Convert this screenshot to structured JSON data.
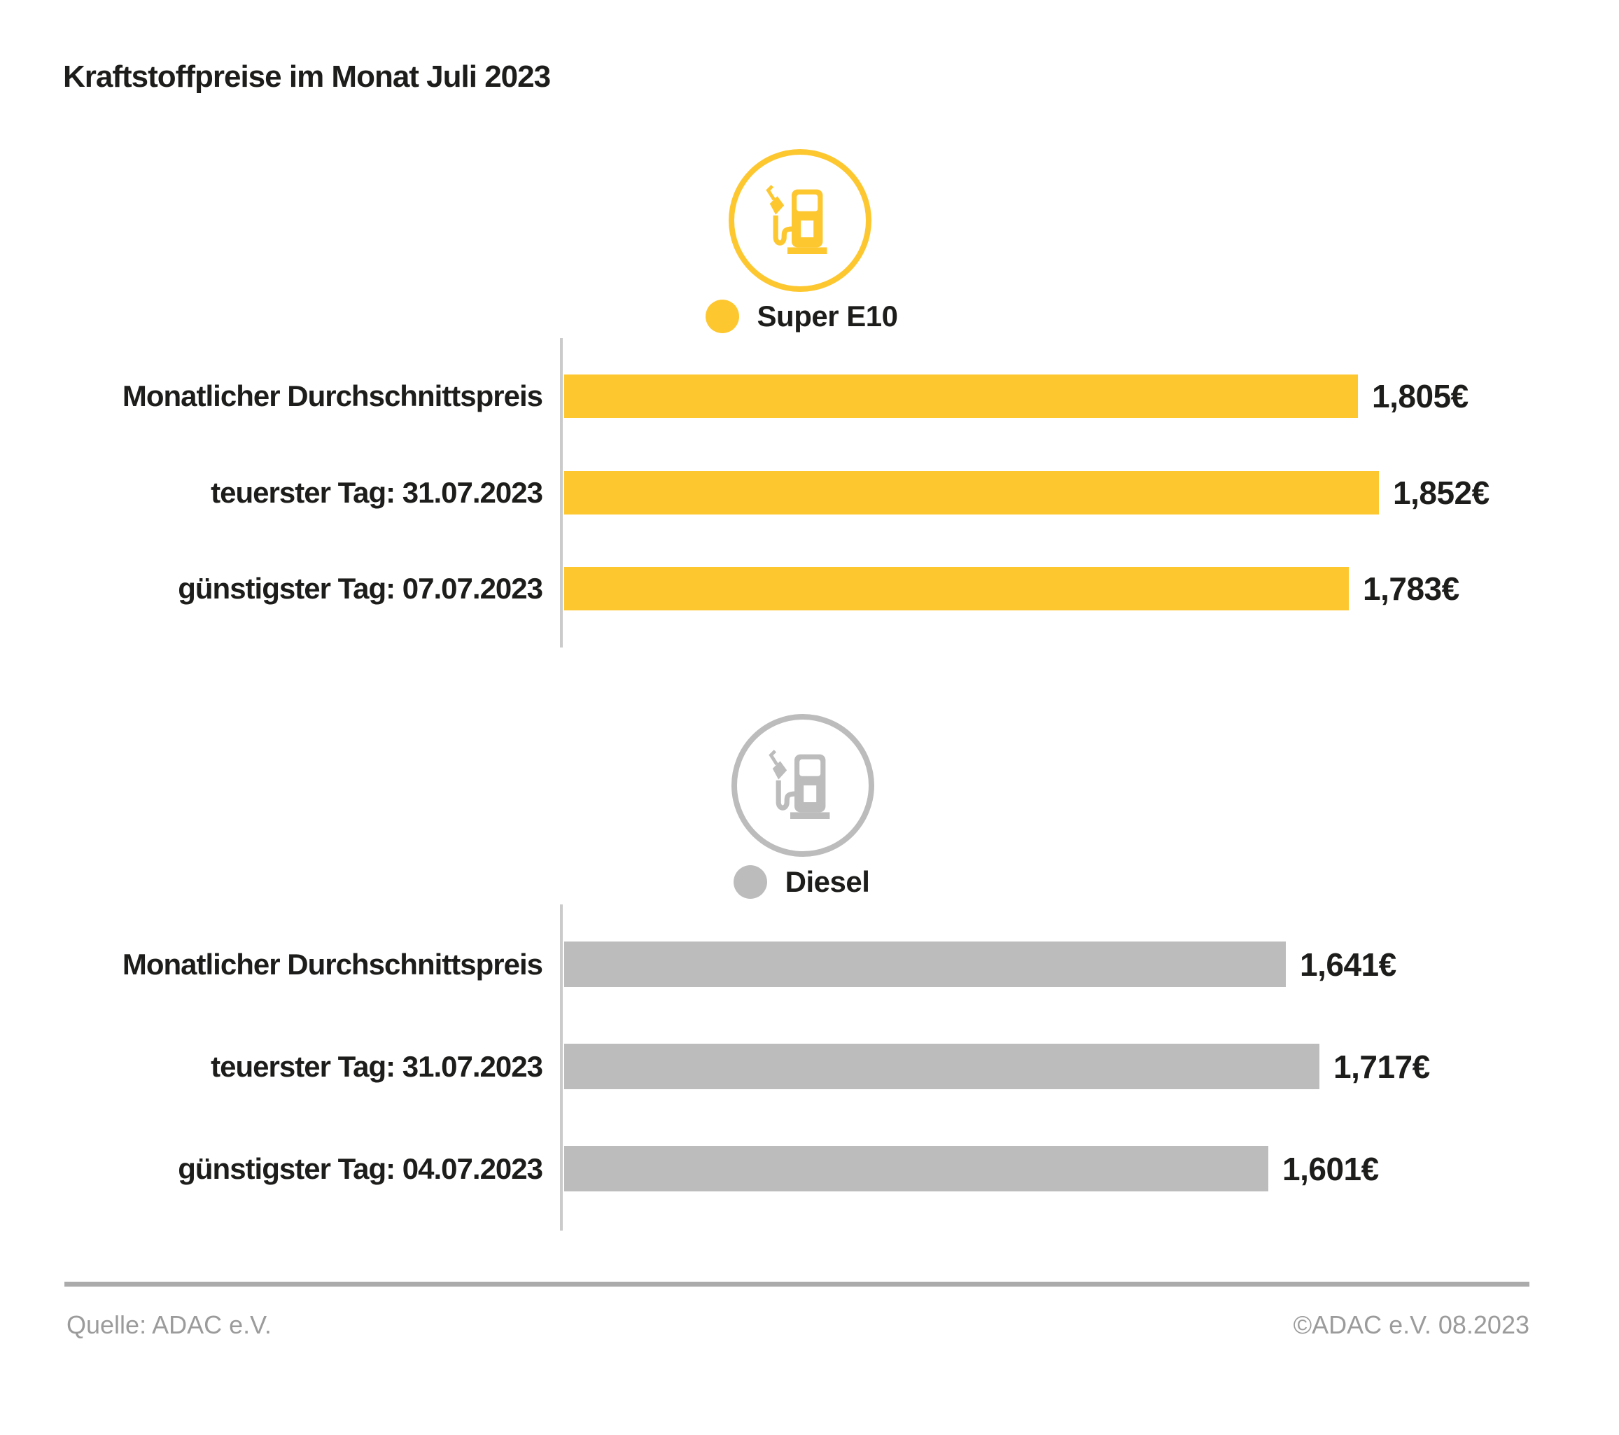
{
  "title": "Kraftstoffpreise im Monat Juli 2023",
  "sections": [
    {
      "id": "super-e10",
      "legend_label": "Super E10",
      "icon": "fuel-pump-icon",
      "color": "#FDC72F"
    },
    {
      "id": "diesel",
      "legend_label": "Diesel",
      "icon": "fuel-pump-icon",
      "color": "#BCBCBC"
    }
  ],
  "chart_data": [
    {
      "type": "bar",
      "orientation": "horizontal",
      "group": "Super E10",
      "categories": [
        "Monatlicher Durchschnittspreis",
        "teuerster Tag: 31.07.2023",
        "günstigster Tag: 07.07.2023"
      ],
      "values": [
        1.805,
        1.852,
        1.783
      ],
      "value_labels": [
        "1,805€",
        "1,852€",
        "1,783€"
      ],
      "bar_color": "#FDC72F",
      "xlim": [
        0,
        1.852
      ],
      "grid": false,
      "value_label_position": "end-of-bar"
    },
    {
      "type": "bar",
      "orientation": "horizontal",
      "group": "Diesel",
      "categories": [
        "Monatlicher Durchschnittspreis",
        "teuerster Tag: 31.07.2023",
        "günstigster Tag: 04.07.2023"
      ],
      "values": [
        1.641,
        1.717,
        1.601
      ],
      "value_labels": [
        "1,641€",
        "1,717€",
        "1,601€"
      ],
      "bar_color": "#BCBCBC",
      "xlim": [
        0,
        1.852
      ],
      "grid": false,
      "value_label_position": "end-of-bar"
    }
  ],
  "footer": {
    "source": "Quelle: ADAC e.V.",
    "copyright": "©ADAC e.V. 08.2023"
  },
  "colors": {
    "super_e10": "#FDC72F",
    "diesel": "#BCBCBC",
    "axis": "#CBCBCB",
    "divider": "#ABABAB",
    "footer_text": "#9B9B9B",
    "text": "#1D1D1B",
    "background": "#FFFFFF"
  }
}
